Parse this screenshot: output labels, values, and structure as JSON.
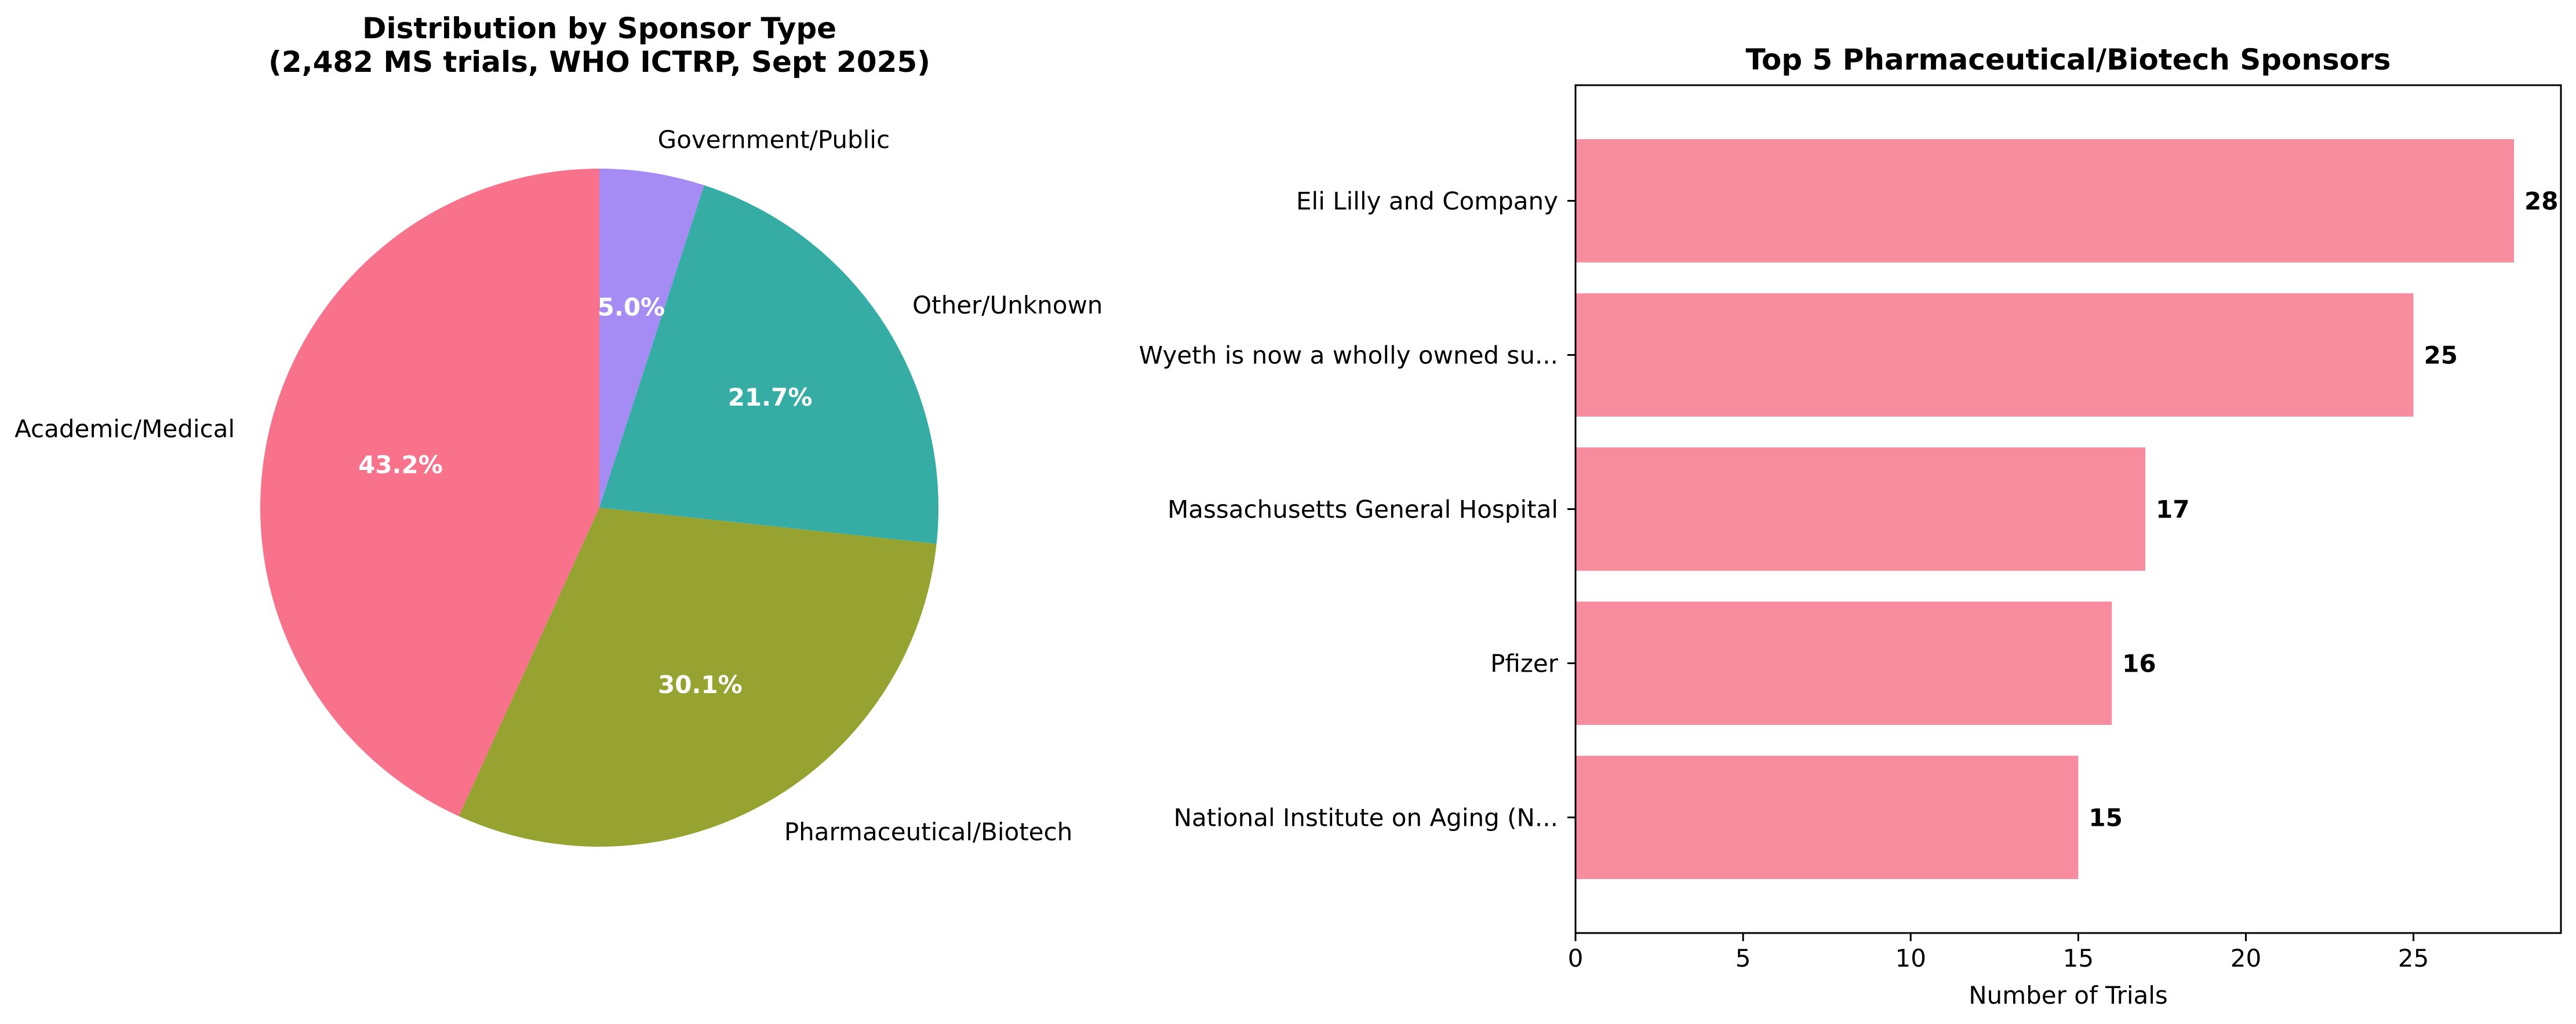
{
  "chart_data": [
    {
      "type": "pie",
      "title": "Distribution by Sponsor Type",
      "subtitle": "(2,482 MS trials, WHO ICTRP, Sept 2025)",
      "slices": [
        {
          "label": "Academic/Medical",
          "value": 43.2,
          "display": "43.2%",
          "color": "#f7728a"
        },
        {
          "label": "Pharmaceutical/Biotech",
          "value": 30.1,
          "display": "30.1%",
          "color": "#96a331"
        },
        {
          "label": "Other/Unknown",
          "value": 21.7,
          "display": "21.7%",
          "color": "#36ada4"
        },
        {
          "label": "Government/Public",
          "value": 5.0,
          "display": "5.0%",
          "color": "#a48cf4"
        }
      ],
      "start_angle_deg": 90,
      "direction": "counterclockwise"
    },
    {
      "type": "bar",
      "orientation": "horizontal",
      "title": "Top 5 Pharmaceutical/Biotech Sponsors",
      "categories": [
        "Eli Lilly and Company",
        "Wyeth is now a wholly owned su...",
        "Massachusetts General Hospital",
        "Pfizer",
        "National Institute on Aging (N..."
      ],
      "values": [
        28,
        25,
        17,
        16,
        15
      ],
      "value_labels": [
        "28",
        "25",
        "17",
        "16",
        "15"
      ],
      "color": "#f78c9e",
      "xlabel": "Number of Trials",
      "ylabel": "",
      "xlim": [
        0,
        29.4
      ],
      "xticks": [
        0,
        5,
        10,
        15,
        20,
        25
      ],
      "xtick_labels": [
        "0",
        "5",
        "10",
        "15",
        "20",
        "25"
      ],
      "grid": false
    }
  ]
}
